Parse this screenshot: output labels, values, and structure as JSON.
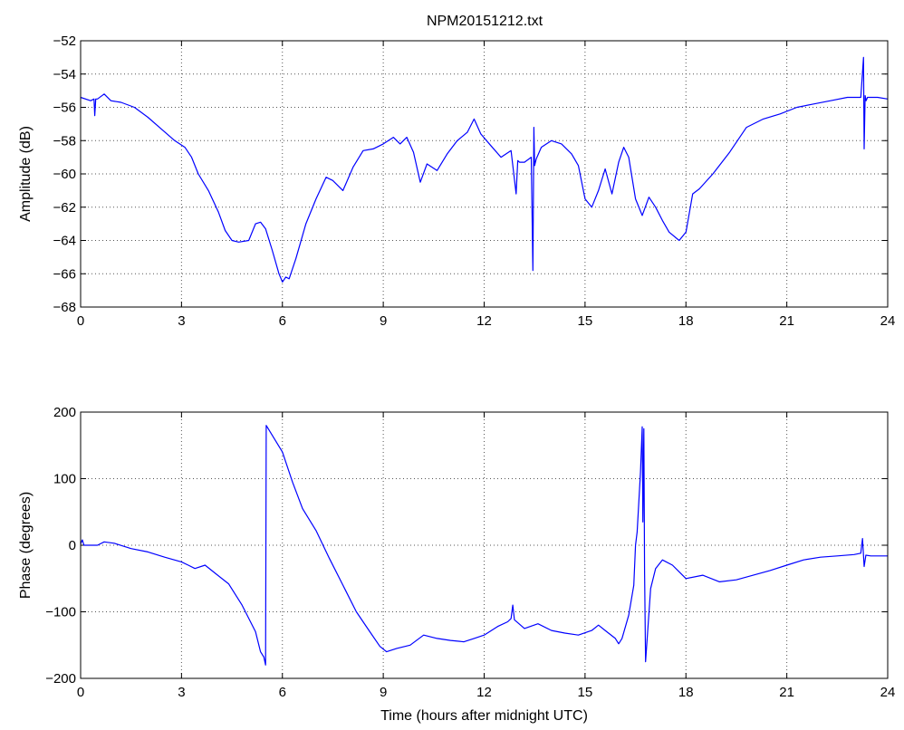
{
  "figure": {
    "title": "NPM20151212.txt"
  },
  "chart_data": [
    {
      "type": "line",
      "title": "NPM20151212.txt",
      "xlabel": "",
      "ylabel": "Amplitude (dB)",
      "xlim": [
        0,
        24
      ],
      "ylim": [
        -68,
        -52
      ],
      "xticks": [
        0,
        3,
        6,
        9,
        12,
        15,
        18,
        21,
        24
      ],
      "yticks": [
        -68,
        -66,
        -64,
        -62,
        -60,
        -58,
        -56,
        -54,
        -52
      ],
      "ytick_labels": [
        "−68",
        "−66",
        "−64",
        "−62",
        "−60",
        "−58",
        "−56",
        "−54",
        "−52"
      ],
      "grid": true,
      "color": "#0000ff",
      "series": [
        {
          "x": [
            0,
            0.3,
            0.4,
            0.42,
            0.45,
            0.5,
            0.7,
            0.9,
            1.2,
            1.6,
            2.0,
            2.4,
            2.8,
            3.1,
            3.3,
            3.5,
            3.8,
            4.1,
            4.3,
            4.5,
            4.7,
            5.0,
            5.2,
            5.35,
            5.5,
            5.7,
            5.9,
            6.0,
            6.1,
            6.2,
            6.4,
            6.7,
            7.0,
            7.3,
            7.5,
            7.8,
            8.1,
            8.4,
            8.7,
            9.0,
            9.3,
            9.5,
            9.7,
            9.9,
            10.1,
            10.3,
            10.6,
            10.9,
            11.2,
            11.5,
            11.7,
            11.9,
            12.2,
            12.5,
            12.8,
            12.95,
            13.0,
            13.05,
            13.2,
            13.4,
            13.45,
            13.48,
            13.5,
            13.55,
            13.7,
            14.0,
            14.3,
            14.6,
            14.8,
            15.0,
            15.2,
            15.4,
            15.6,
            15.8,
            16.0,
            16.15,
            16.3,
            16.5,
            16.7,
            16.9,
            17.1,
            17.3,
            17.5,
            17.8,
            18.0,
            18.2,
            18.4,
            18.8,
            19.3,
            19.8,
            20.3,
            20.8,
            21.3,
            21.8,
            22.3,
            22.8,
            23.2,
            23.28,
            23.3,
            23.33,
            23.36,
            23.4,
            23.7,
            24
          ],
          "y": [
            -55.4,
            -55.6,
            -55.5,
            -56.5,
            -55.5,
            -55.5,
            -55.2,
            -55.6,
            -55.7,
            -56.0,
            -56.6,
            -57.3,
            -58.0,
            -58.4,
            -59.0,
            -60.0,
            -61.0,
            -62.3,
            -63.4,
            -64.0,
            -64.1,
            -64.0,
            -63.0,
            -62.9,
            -63.3,
            -64.6,
            -66.0,
            -66.5,
            -66.2,
            -66.3,
            -65.1,
            -63.0,
            -61.5,
            -60.2,
            -60.4,
            -61.0,
            -59.6,
            -58.6,
            -58.5,
            -58.2,
            -57.8,
            -58.2,
            -57.8,
            -58.7,
            -60.5,
            -59.4,
            -59.8,
            -58.8,
            -58.0,
            -57.5,
            -56.7,
            -57.6,
            -58.3,
            -59.0,
            -58.6,
            -61.2,
            -59.2,
            -59.3,
            -59.3,
            -59.0,
            -65.8,
            -57.2,
            -59.5,
            -59.1,
            -58.4,
            -58.0,
            -58.2,
            -58.8,
            -59.5,
            -61.5,
            -62.0,
            -61.0,
            -59.7,
            -61.2,
            -59.3,
            -58.4,
            -59.0,
            -61.5,
            -62.5,
            -61.4,
            -62.0,
            -62.8,
            -63.5,
            -64.0,
            -63.5,
            -61.2,
            -60.9,
            -60.0,
            -58.7,
            -57.2,
            -56.7,
            -56.4,
            -56.0,
            -55.8,
            -55.6,
            -55.4,
            -55.4,
            -53.0,
            -58.5,
            -55.3,
            -55.6,
            -55.4,
            -55.4,
            -55.5
          ]
        }
      ]
    },
    {
      "type": "line",
      "title": "",
      "xlabel": "Time (hours after midnight UTC)",
      "ylabel": "Phase (degrees)",
      "xlim": [
        0,
        24
      ],
      "ylim": [
        -200,
        200
      ],
      "xticks": [
        0,
        3,
        6,
        9,
        12,
        15,
        18,
        21,
        24
      ],
      "yticks": [
        -200,
        -100,
        0,
        100,
        200
      ],
      "ytick_labels": [
        "−200",
        "−100",
        "0",
        "100",
        "200"
      ],
      "grid": true,
      "color": "#0000ff",
      "series": [
        {
          "x": [
            0,
            0.05,
            0.1,
            0.5,
            0.7,
            1.0,
            1.5,
            2.0,
            2.5,
            3.0,
            3.2,
            3.4,
            3.7,
            4.0,
            4.4,
            4.8,
            5.2,
            5.35,
            5.45,
            5.5,
            5.52,
            5.7,
            6.0,
            6.3,
            6.6,
            7.0,
            7.4,
            7.8,
            8.2,
            8.6,
            8.9,
            9.1,
            9.4,
            9.8,
            10.2,
            10.6,
            11.0,
            11.4,
            11.7,
            12.0,
            12.4,
            12.7,
            12.8,
            12.85,
            12.9,
            13.2,
            13.6,
            14.0,
            14.4,
            14.8,
            15.2,
            15.4,
            15.6,
            15.9,
            16.0,
            16.1,
            16.3,
            16.45,
            16.5,
            16.55,
            16.65,
            16.7,
            16.72,
            16.75,
            16.77,
            16.8,
            16.95,
            17.1,
            17.3,
            17.6,
            17.9,
            18.0,
            18.5,
            19.0,
            19.5,
            20.0,
            20.5,
            21.0,
            21.5,
            22.0,
            22.5,
            23.0,
            23.2,
            23.25,
            23.3,
            23.35,
            23.5,
            24
          ],
          "y": [
            2,
            8,
            0,
            0,
            5,
            3,
            -5,
            -10,
            -18,
            -25,
            -30,
            -35,
            -30,
            -42,
            -58,
            -90,
            -130,
            -160,
            -168,
            -180,
            180,
            165,
            140,
            95,
            55,
            22,
            -20,
            -60,
            -100,
            -130,
            -152,
            -160,
            -155,
            -150,
            -135,
            -140,
            -143,
            -145,
            -140,
            -135,
            -122,
            -115,
            -110,
            -90,
            -112,
            -125,
            -118,
            -128,
            -132,
            -135,
            -128,
            -120,
            -128,
            -140,
            -148,
            -140,
            -105,
            -60,
            0,
            20,
            110,
            178,
            35,
            175,
            -40,
            -175,
            -65,
            -35,
            -22,
            -30,
            -45,
            -50,
            -45,
            -55,
            -52,
            -45,
            -38,
            -30,
            -22,
            -18,
            -16,
            -14,
            -12,
            10,
            -32,
            -15,
            -16,
            -16
          ]
        }
      ]
    }
  ]
}
